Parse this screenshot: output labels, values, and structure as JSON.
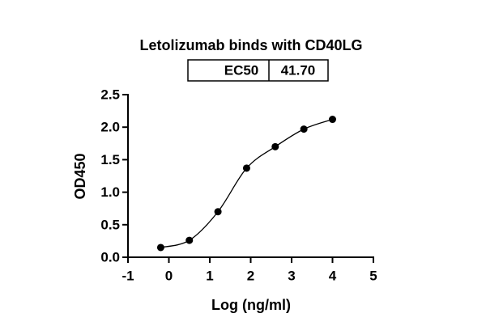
{
  "chart_data": {
    "type": "scatter",
    "title": "Letolizumab binds with CD40LG",
    "ec50_table": {
      "label": "EC50",
      "value": "41.70"
    },
    "x_label": "Log (ng/ml)",
    "y_label": "OD450",
    "x": [
      -0.2,
      0.5,
      1.2,
      1.9,
      2.6,
      3.3,
      4.0
    ],
    "series": [
      {
        "values": [
          0.15,
          0.26,
          0.7,
          1.37,
          1.7,
          1.97,
          2.12
        ],
        "color": "#000000"
      }
    ],
    "fit_curve": true,
    "xlim": [
      -1,
      5
    ],
    "xticks": [
      -1,
      0,
      1,
      2,
      3,
      4,
      5
    ],
    "ylim": [
      0,
      2.5
    ],
    "yticks": [
      {
        "value": 0,
        "label": "0.0"
      },
      0.5,
      {
        "value": 1,
        "label": "1.0"
      },
      1.5,
      {
        "value": 2,
        "label": "2.0"
      },
      2.5
    ]
  }
}
